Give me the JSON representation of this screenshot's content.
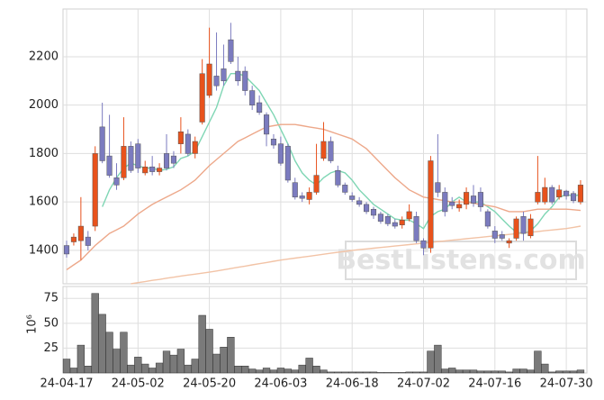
{
  "chart_data": {
    "type": "candlestick",
    "up_color": "#e8521c",
    "down_color": "#7b7bbf",
    "categories": [
      "24-04-17",
      null,
      null,
      null,
      null,
      null,
      null,
      null,
      null,
      null,
      "24-05-02",
      null,
      null,
      null,
      null,
      null,
      null,
      null,
      null,
      null,
      "24-05-20",
      null,
      null,
      null,
      null,
      null,
      null,
      null,
      null,
      null,
      "24-06-03",
      null,
      null,
      null,
      null,
      null,
      null,
      null,
      null,
      null,
      "24-06-18",
      null,
      null,
      null,
      null,
      null,
      null,
      null,
      null,
      null,
      "24-07-02",
      null,
      null,
      null,
      null,
      null,
      null,
      null,
      null,
      null,
      "24-07-16",
      null,
      null,
      null,
      null,
      null,
      null,
      null,
      null,
      null,
      "24-07-30",
      null,
      null
    ],
    "open": [
      1420,
      1435,
      1440,
      1455,
      1500,
      1910,
      1790,
      1700,
      1700,
      1830,
      1840,
      1720,
      1745,
      1725,
      1800,
      1790,
      1840,
      1880,
      1800,
      1930,
      2040,
      2120,
      2150,
      2270,
      2140,
      2140,
      2060,
      2010,
      1960,
      1860,
      1840,
      1830,
      1680,
      1625,
      1610,
      1640,
      1780,
      1850,
      1730,
      1670,
      1625,
      1605,
      1590,
      1570,
      1550,
      1540,
      1515,
      1505,
      1530,
      1540,
      1440,
      1410,
      1680,
      1640,
      1600,
      1575,
      1590,
      1625,
      1640,
      1560,
      1480,
      1465,
      1430,
      1450,
      1540,
      1460,
      1600,
      1600,
      1660,
      1620,
      1645,
      1635,
      1600
    ],
    "high": [
      1440,
      1470,
      1620,
      1480,
      1830,
      2010,
      1960,
      1760,
      1950,
      1850,
      1860,
      1770,
      1790,
      1760,
      1880,
      1810,
      1950,
      1900,
      1870,
      2190,
      2320,
      2300,
      2250,
      2340,
      2200,
      2160,
      2080,
      2040,
      1970,
      1880,
      1870,
      1840,
      1700,
      1640,
      1660,
      1840,
      1930,
      1870,
      1750,
      1680,
      1640,
      1620,
      1600,
      1580,
      1560,
      1550,
      1530,
      1540,
      1590,
      1560,
      1450,
      1790,
      1880,
      1660,
      1620,
      1610,
      1660,
      1670,
      1660,
      1570,
      1500,
      1480,
      1450,
      1540,
      1560,
      1550,
      1790,
      1700,
      1670,
      1670,
      1650,
      1645,
      1690
    ],
    "low": [
      1370,
      1420,
      1360,
      1400,
      1480,
      1760,
      1700,
      1650,
      1690,
      1720,
      1720,
      1710,
      1710,
      1710,
      1730,
      1740,
      1800,
      1790,
      1780,
      1920,
      2030,
      2060,
      2080,
      2170,
      2080,
      2040,
      1980,
      1960,
      1830,
      1820,
      1750,
      1680,
      1610,
      1600,
      1590,
      1630,
      1770,
      1760,
      1660,
      1630,
      1600,
      1580,
      1550,
      1530,
      1510,
      1500,
      1490,
      1490,
      1520,
      1430,
      1380,
      1390,
      1620,
      1540,
      1570,
      1560,
      1570,
      1580,
      1560,
      1490,
      1430,
      1440,
      1410,
      1440,
      1440,
      1450,
      1590,
      1590,
      1590,
      1610,
      1610,
      1595,
      1590
    ],
    "close": [
      1385,
      1455,
      1500,
      1420,
      1800,
      1770,
      1710,
      1670,
      1830,
      1730,
      1740,
      1745,
      1725,
      1740,
      1740,
      1760,
      1890,
      1800,
      1850,
      2130,
      2170,
      2080,
      2100,
      2180,
      2100,
      2060,
      2000,
      1970,
      1880,
      1835,
      1760,
      1690,
      1620,
      1615,
      1640,
      1710,
      1850,
      1770,
      1670,
      1640,
      1610,
      1590,
      1560,
      1545,
      1520,
      1510,
      1500,
      1525,
      1560,
      1440,
      1410,
      1770,
      1640,
      1560,
      1585,
      1590,
      1640,
      1595,
      1580,
      1500,
      1450,
      1450,
      1440,
      1530,
      1470,
      1530,
      1640,
      1660,
      1600,
      1650,
      1625,
      1605,
      1670
    ],
    "lines": [
      {
        "color": "#7fd6b4",
        "values": [
          null,
          null,
          null,
          null,
          null,
          1580,
          1650,
          1700,
          1740,
          1760,
          1750,
          1740,
          1740,
          1730,
          1735,
          1745,
          1780,
          1790,
          1810,
          1870,
          1930,
          1990,
          2080,
          2130,
          2130,
          2120,
          2090,
          2060,
          2010,
          1960,
          1900,
          1840,
          1770,
          1720,
          1690,
          1670,
          1700,
          1720,
          1730,
          1720,
          1690,
          1650,
          1620,
          1590,
          1570,
          1550,
          1530,
          1525,
          1525,
          1510,
          1490,
          1540,
          1560,
          1570,
          1600,
          1620,
          1600,
          1600,
          1600,
          1580,
          1560,
          1530,
          1500,
          1475,
          1470,
          1480,
          1510,
          1550,
          1580,
          1620,
          1630,
          1625,
          1630
        ]
      },
      {
        "color": "#eda88a",
        "values": [
          1320,
          1340,
          1360,
          1390,
          1420,
          1445,
          1470,
          1485,
          1500,
          1525,
          1550,
          1570,
          1590,
          1605,
          1620,
          1635,
          1650,
          1670,
          1690,
          1720,
          1750,
          1775,
          1800,
          1825,
          1850,
          1865,
          1880,
          1895,
          1910,
          1915,
          1920,
          1920,
          1920,
          1915,
          1910,
          1905,
          1900,
          1890,
          1880,
          1870,
          1860,
          1840,
          1820,
          1790,
          1760,
          1730,
          1700,
          1675,
          1650,
          1635,
          1620,
          1615,
          1610,
          1605,
          1600,
          1600,
          1600,
          1595,
          1590,
          1585,
          1580,
          1570,
          1560,
          1560,
          1560,
          1565,
          1570,
          1570,
          1570,
          1570,
          1570,
          1568,
          1565
        ]
      },
      {
        "color": "#f2c3a6",
        "values": [
          null,
          null,
          null,
          null,
          null,
          null,
          null,
          null,
          null,
          1262,
          1267,
          1271,
          1276,
          1280,
          1285,
          1289,
          1294,
          1298,
          1302,
          1306,
          1310,
          1315,
          1320,
          1325,
          1330,
          1335,
          1340,
          1345,
          1350,
          1355,
          1360,
          1364,
          1368,
          1372,
          1376,
          1380,
          1384,
          1388,
          1392,
          1396,
          1400,
          1403,
          1406,
          1409,
          1412,
          1415,
          1418,
          1421,
          1424,
          1427,
          1430,
          1433,
          1436,
          1439,
          1442,
          1445,
          1448,
          1451,
          1454,
          1457,
          1460,
          1463,
          1466,
          1469,
          1472,
          1475,
          1478,
          1481,
          1484,
          1487,
          1490,
          1495,
          1500
        ]
      }
    ],
    "ylim": [
      1262,
      2397
    ],
    "yticks": [
      1400,
      1600,
      1800,
      2000,
      2200
    ],
    "grid": true,
    "watermark": "BestListens.com",
    "volume": {
      "color": "#7a7a7a",
      "y_label": "10⁶",
      "ylim": [
        0,
        87
      ],
      "yticks": [
        25,
        50,
        75
      ],
      "values": [
        14,
        5,
        28,
        7,
        80,
        59,
        41,
        24,
        41,
        8,
        16,
        9,
        5,
        10,
        22,
        18,
        24,
        8,
        14,
        58,
        44,
        19,
        26,
        36,
        7,
        7,
        4,
        3,
        5,
        3,
        5,
        4,
        3,
        8,
        15,
        7,
        3,
        1,
        1,
        1,
        1,
        1,
        1,
        1,
        0.5,
        0.5,
        0.5,
        0.5,
        1,
        1,
        1,
        22,
        28,
        4,
        5,
        3,
        3,
        3,
        2,
        2,
        2,
        2,
        1,
        4,
        4,
        3,
        22,
        9,
        1,
        2,
        2,
        2,
        3
      ]
    }
  }
}
